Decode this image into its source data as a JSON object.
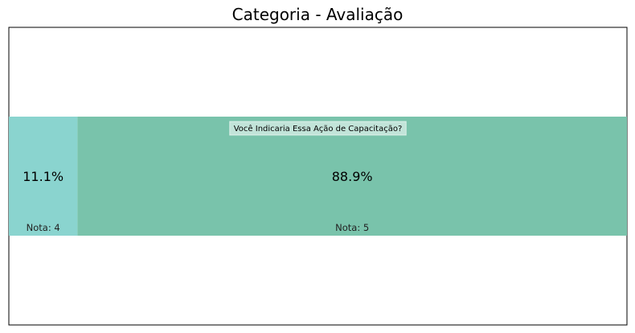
{
  "chart_data": {
    "type": "bar",
    "orientation": "horizontal-stacked-100",
    "title": "Categoria - Avaliação",
    "question": "Você Indicaria Essa Ação de Capacitação?",
    "categories": [
      "Nota: 4",
      "Nota: 5"
    ],
    "values": [
      11.1,
      88.9
    ],
    "value_labels": [
      "11.1%",
      "88.9%"
    ],
    "colors": [
      "#8ad4cf",
      "#79c3ab"
    ],
    "xlim": [
      0,
      100
    ],
    "grid": false,
    "legend": "none"
  }
}
